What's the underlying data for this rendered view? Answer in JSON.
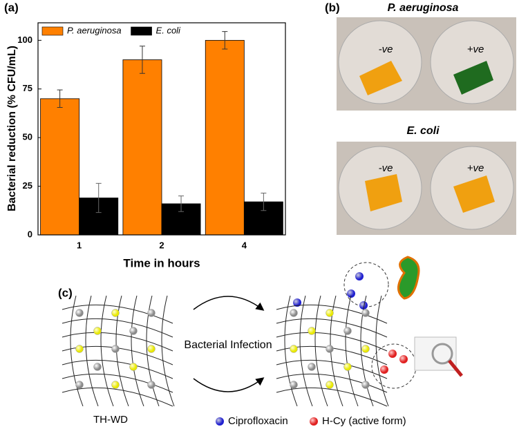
{
  "panels": {
    "a": "(a)",
    "b": "(b)",
    "c": "(c)"
  },
  "chart_data": {
    "type": "bar",
    "categories": [
      "1",
      "2",
      "4"
    ],
    "series": [
      {
        "name": "P. aeruginosa",
        "color": "#ff8000",
        "values": [
          70,
          90,
          100
        ],
        "errors": [
          4.5,
          7,
          4.5
        ]
      },
      {
        "name": "E. coli",
        "color": "#000000",
        "values": [
          19,
          16,
          17
        ],
        "errors": [
          7.5,
          4,
          4.5
        ]
      }
    ],
    "x_label": "Time in hours",
    "y_label": "Bacterial reduction (% CFU/mL)",
    "ylim": [
      0,
      109
    ],
    "yticks": [
      0,
      25,
      50,
      75,
      100
    ],
    "legend": "top-left"
  },
  "photos": {
    "title_top": "P. aeruginosa",
    "title_bottom": "E. coli",
    "top_neg": "-ve",
    "top_pos": "+ve",
    "bottom_neg": "-ve",
    "bottom_pos": "+ve"
  },
  "diagram": {
    "arrow_label": "Bacterial Infection",
    "material": "TH-WD",
    "legend_blue": "Ciprofloxacin",
    "legend_red": "H-Cy (active form)"
  }
}
